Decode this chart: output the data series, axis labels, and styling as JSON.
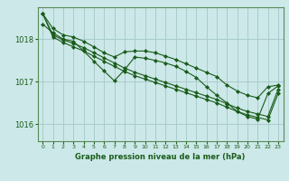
{
  "title": "Graphe pression niveau de la mer (hPa)",
  "bg_color": "#cce8e8",
  "grid_color": "#aacccc",
  "line_color": "#1a5c1a",
  "spine_color": "#5a8a5a",
  "xlim": [
    -0.5,
    23.5
  ],
  "ylim": [
    1015.6,
    1018.75
  ],
  "yticks": [
    1016,
    1017,
    1018
  ],
  "xticks": [
    0,
    1,
    2,
    3,
    4,
    5,
    6,
    7,
    8,
    9,
    10,
    11,
    12,
    13,
    14,
    15,
    16,
    17,
    18,
    19,
    20,
    21,
    22,
    23
  ],
  "series": {
    "line_top": [
      1018.6,
      1018.25,
      1018.1,
      1018.05,
      1017.95,
      1017.82,
      1017.68,
      1017.58,
      1017.7,
      1017.72,
      1017.72,
      1017.68,
      1017.6,
      1017.52,
      1017.42,
      1017.32,
      1017.22,
      1017.12,
      1016.92,
      1016.78,
      1016.68,
      1016.62,
      1016.88,
      1016.92
    ],
    "line_smooth1": [
      1018.6,
      1018.1,
      1017.98,
      1017.9,
      1017.8,
      1017.68,
      1017.56,
      1017.44,
      1017.32,
      1017.22,
      1017.14,
      1017.06,
      1016.98,
      1016.9,
      1016.82,
      1016.74,
      1016.66,
      1016.58,
      1016.48,
      1016.38,
      1016.3,
      1016.24,
      1016.18,
      1016.82
    ],
    "line_smooth2": [
      1018.6,
      1018.05,
      1017.92,
      1017.82,
      1017.72,
      1017.6,
      1017.48,
      1017.36,
      1017.24,
      1017.14,
      1017.06,
      1016.98,
      1016.9,
      1016.82,
      1016.74,
      1016.66,
      1016.58,
      1016.5,
      1016.4,
      1016.3,
      1016.22,
      1016.16,
      1016.1,
      1016.72
    ],
    "line_zigzag": [
      1018.35,
      1018.15,
      1018.0,
      1017.95,
      1017.72,
      1017.48,
      1017.25,
      1017.02,
      1017.28,
      1017.58,
      1017.55,
      1017.5,
      1017.44,
      1017.36,
      1017.24,
      1017.1,
      1016.88,
      1016.68,
      1016.5,
      1016.3,
      1016.18,
      1016.12,
      1016.72,
      1016.9
    ]
  }
}
